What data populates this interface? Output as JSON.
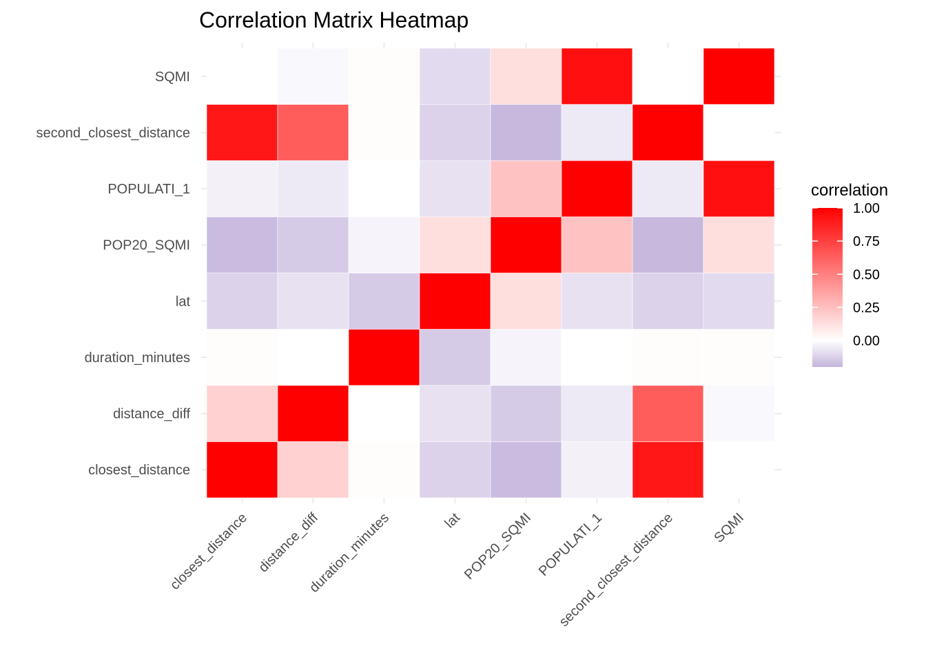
{
  "chart_data": {
    "type": "heatmap",
    "title": "Correlation Matrix Heatmap",
    "xlabel": "",
    "ylabel": "",
    "x_categories": [
      "closest_distance",
      "distance_diff",
      "duration_minutes",
      "lat",
      "POP20_SQMI",
      "POPULATI_1",
      "second_closest_distance",
      "SQMI"
    ],
    "y_categories": [
      "closest_distance",
      "distance_diff",
      "duration_minutes",
      "lat",
      "POP20_SQMI",
      "POPULATI_1",
      "second_closest_distance",
      "SQMI"
    ],
    "values": [
      [
        1.0,
        0.18,
        0.01,
        -0.12,
        -0.18,
        -0.04,
        0.91,
        0.0
      ],
      [
        0.18,
        1.0,
        0.0,
        -0.08,
        -0.14,
        -0.06,
        0.64,
        -0.02
      ],
      [
        0.01,
        0.0,
        1.0,
        -0.14,
        -0.03,
        0.0,
        0.01,
        0.01
      ],
      [
        -0.12,
        -0.08,
        -0.14,
        1.0,
        0.13,
        -0.08,
        -0.12,
        -0.1
      ],
      [
        -0.18,
        -0.14,
        -0.03,
        0.13,
        1.0,
        0.24,
        -0.19,
        0.13
      ],
      [
        -0.04,
        -0.06,
        0.0,
        -0.08,
        0.24,
        1.0,
        -0.06,
        0.94
      ],
      [
        0.91,
        0.64,
        0.01,
        -0.12,
        -0.19,
        -0.06,
        1.0,
        0.0
      ],
      [
        0.0,
        -0.02,
        0.01,
        -0.1,
        0.13,
        0.94,
        0.0,
        1.0
      ]
    ],
    "legend": {
      "title": "correlation",
      "ticks": [
        1.0,
        0.75,
        0.5,
        0.25,
        0.0
      ],
      "tick_labels": [
        "1.00",
        "0.75",
        "0.50",
        "0.25",
        "0.00"
      ],
      "range": [
        -0.2,
        1.0
      ],
      "placement": "right"
    },
    "colors": {
      "low": "#c4b4dc",
      "mid": "#ffffff",
      "high": "#ff0000"
    },
    "grid": true
  }
}
